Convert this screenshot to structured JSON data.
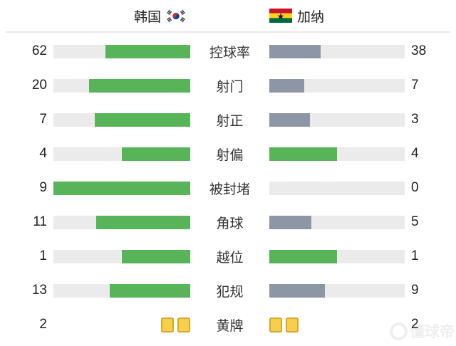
{
  "header": {
    "home": {
      "name": "韩国",
      "flag": "south-korea-flag"
    },
    "away": {
      "name": "加纳",
      "flag": "ghana-flag"
    }
  },
  "colors": {
    "bar_green": "#57b459",
    "bar_gray": "#8d96a4",
    "track": "#ebebeb",
    "card_fill": "#f7d04b",
    "card_border": "#d9a62e",
    "divider": "#e9e9e9",
    "text": "#222222"
  },
  "stats": [
    {
      "label": "控球率",
      "home": 62,
      "away": 38,
      "home_pct": 62,
      "away_pct": 38,
      "home_color": "green",
      "away_color": "gray",
      "cards": false
    },
    {
      "label": "射门",
      "home": 20,
      "away": 7,
      "home_pct": 74.1,
      "away_pct": 25.9,
      "home_color": "green",
      "away_color": "gray",
      "cards": false
    },
    {
      "label": "射正",
      "home": 7,
      "away": 3,
      "home_pct": 70,
      "away_pct": 30,
      "home_color": "green",
      "away_color": "gray",
      "cards": false
    },
    {
      "label": "射偏",
      "home": 4,
      "away": 4,
      "home_pct": 50,
      "away_pct": 50,
      "home_color": "green",
      "away_color": "green",
      "cards": false
    },
    {
      "label": "被封堵",
      "home": 9,
      "away": 0,
      "home_pct": 100,
      "away_pct": 0,
      "home_color": "green",
      "away_color": "gray",
      "cards": false
    },
    {
      "label": "角球",
      "home": 11,
      "away": 5,
      "home_pct": 68.75,
      "away_pct": 31.25,
      "home_color": "green",
      "away_color": "gray",
      "cards": false
    },
    {
      "label": "越位",
      "home": 1,
      "away": 1,
      "home_pct": 50,
      "away_pct": 50,
      "home_color": "green",
      "away_color": "green",
      "cards": false
    },
    {
      "label": "犯规",
      "home": 13,
      "away": 9,
      "home_pct": 59.1,
      "away_pct": 40.9,
      "home_color": "green",
      "away_color": "gray",
      "cards": false
    },
    {
      "label": "黄牌",
      "home": 2,
      "away": 2,
      "home_pct": 0,
      "away_pct": 0,
      "home_color": "green",
      "away_color": "gray",
      "cards": true
    }
  ],
  "chart_data": {
    "type": "bar",
    "title": "",
    "categories": [
      "控球率",
      "射门",
      "射正",
      "射偏",
      "被封堵",
      "角球",
      "越位",
      "犯规",
      "黄牌"
    ],
    "series": [
      {
        "name": "韩国",
        "values": [
          62,
          20,
          7,
          4,
          9,
          11,
          1,
          13,
          2
        ]
      },
      {
        "name": "加纳",
        "values": [
          38,
          7,
          3,
          4,
          0,
          5,
          1,
          9,
          2
        ]
      }
    ],
    "layout": "mirrored horizontal comparison bars, labels centered, home values left, away values right",
    "legend_position": "top"
  },
  "watermark": {
    "text": "懂球帝"
  }
}
